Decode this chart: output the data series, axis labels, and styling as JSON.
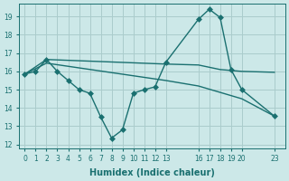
{
  "background_color": "#cce8e8",
  "grid_color": "#aacccc",
  "line_color": "#1a7070",
  "xlabel": "Humidex (Indice chaleur)",
  "ylim": [
    11.8,
    19.7
  ],
  "xlim": [
    -0.5,
    24
  ],
  "yticks": [
    12,
    13,
    14,
    15,
    16,
    17,
    18,
    19
  ],
  "xticks": [
    0,
    1,
    2,
    3,
    4,
    5,
    6,
    7,
    8,
    9,
    10,
    11,
    12,
    13,
    16,
    17,
    18,
    19,
    20,
    23
  ],
  "lines": [
    {
      "x": [
        0,
        1,
        2,
        3,
        4,
        5,
        6,
        7,
        8,
        9,
        10,
        11,
        12,
        13,
        16,
        17,
        18,
        19,
        20,
        23
      ],
      "y": [
        15.85,
        16.0,
        16.65,
        16.0,
        15.5,
        15.0,
        14.8,
        13.5,
        12.35,
        12.8,
        14.8,
        15.0,
        15.15,
        16.5,
        18.85,
        19.4,
        18.95,
        16.1,
        15.0,
        13.55
      ],
      "marker": "D",
      "markersize": 3,
      "linewidth": 1.0,
      "dashed": false
    },
    {
      "x": [
        0,
        2,
        13,
        16,
        18,
        20,
        23
      ],
      "y": [
        15.85,
        16.65,
        16.4,
        16.35,
        16.1,
        16.0,
        15.95
      ],
      "marker": null,
      "markersize": 0,
      "linewidth": 1.0,
      "dashed": false
    },
    {
      "x": [
        0,
        2,
        13,
        16,
        18,
        20,
        23
      ],
      "y": [
        15.85,
        16.45,
        15.5,
        15.2,
        14.85,
        14.5,
        13.55
      ],
      "marker": null,
      "markersize": 0,
      "linewidth": 1.0,
      "dashed": false
    }
  ]
}
